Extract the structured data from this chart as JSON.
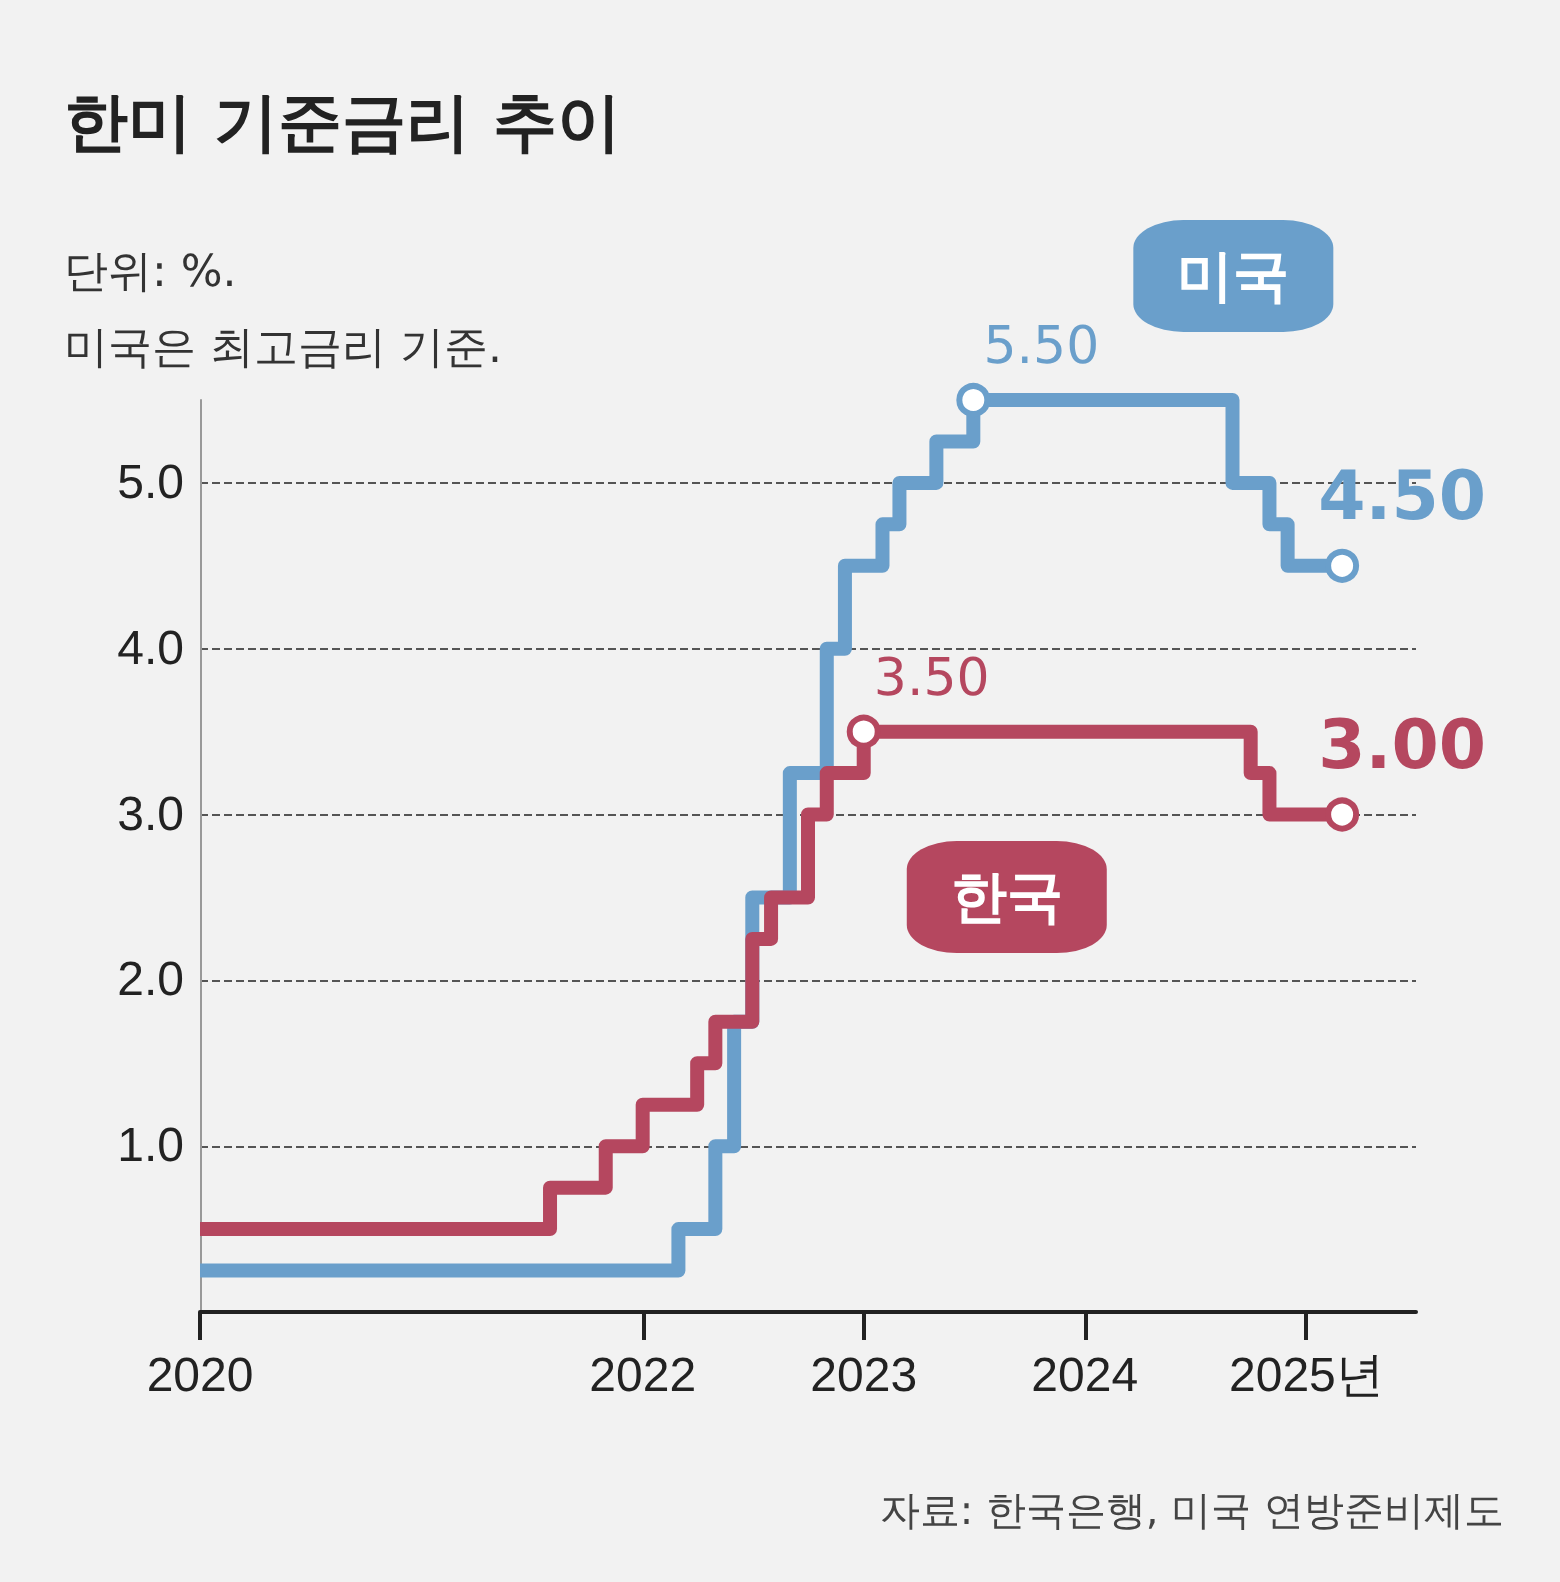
{
  "chart_data": {
    "type": "step",
    "title": "한미 기준금리 추이",
    "subtitle": "단위: %.\n미국은 최고금리 기준.",
    "annotations": [
      "자료: 한국은행, 미국 연방준비제도"
    ],
    "legend": false,
    "grid": "y",
    "line_style": "solid",
    "xlim": [
      "2020-01",
      "2025-07"
    ],
    "xticks": [
      {
        "value": "2020-01",
        "label": "2020"
      },
      {
        "value": "2022-01",
        "label": "2022"
      },
      {
        "value": "2023-01",
        "label": "2023"
      },
      {
        "value": "2024-01",
        "label": "2024"
      },
      {
        "value": "2025-01",
        "label": "2025년"
      }
    ],
    "ylim": [
      0,
      5.5
    ],
    "yticks": [
      {
        "value": 1,
        "label": "1.0"
      },
      {
        "value": 2,
        "label": "2.0"
      },
      {
        "value": 3,
        "label": "3.0"
      },
      {
        "value": 4,
        "label": "4.0"
      },
      {
        "value": 5,
        "label": "5.0"
      }
    ],
    "series": [
      {
        "name": "미국",
        "color": "#6a9fcb",
        "x": [
          "2020-01",
          "2022-03",
          "2022-05",
          "2022-06",
          "2022-07",
          "2022-09",
          "2022-11",
          "2022-12",
          "2023-02",
          "2023-03",
          "2023-05",
          "2023-07",
          "2024-09",
          "2024-11",
          "2024-12",
          "2025-03"
        ],
        "values": [
          0.25,
          0.5,
          1.0,
          1.75,
          2.5,
          3.25,
          4.0,
          4.5,
          4.75,
          5.0,
          5.25,
          5.5,
          5.0,
          4.75,
          4.5,
          4.5
        ],
        "value_labels": [
          null,
          null,
          null,
          null,
          null,
          null,
          null,
          null,
          null,
          null,
          null,
          "5.50",
          null,
          null,
          null,
          "4.50"
        ]
      },
      {
        "name": "한국",
        "color": "#b5475f",
        "x": [
          "2020-01",
          "2021-08",
          "2021-11",
          "2022-01",
          "2022-04",
          "2022-05",
          "2022-07",
          "2022-08",
          "2022-10",
          "2022-11",
          "2023-01",
          "2024-10",
          "2024-11",
          "2025-03"
        ],
        "values": [
          0.5,
          0.75,
          1.0,
          1.25,
          1.5,
          1.75,
          2.25,
          2.5,
          3.0,
          3.25,
          3.5,
          3.25,
          3.0,
          3.0
        ],
        "value_labels": [
          null,
          null,
          null,
          null,
          null,
          null,
          null,
          null,
          null,
          null,
          "3.50",
          null,
          null,
          "3.00"
        ]
      }
    ]
  }
}
